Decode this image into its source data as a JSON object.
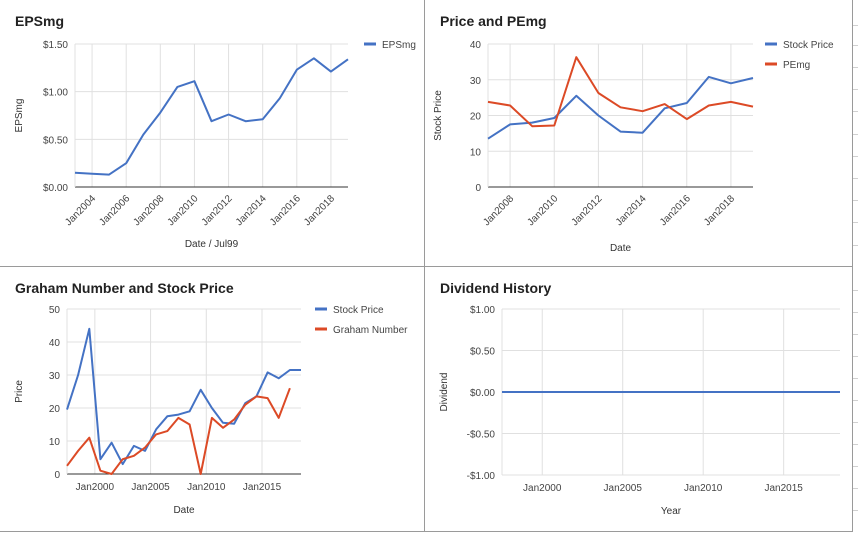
{
  "charts": [
    {
      "id": "c1",
      "type": "line",
      "title": "EPSmg",
      "xlabel": "Date / Jul99",
      "ylabel": "EPSmg",
      "ylim": [
        0,
        1.5
      ],
      "yticks": [
        0,
        0.5,
        1.0,
        1.5
      ],
      "ytick_labels": [
        "$0.00",
        "$0.50",
        "$1.00",
        "$1.50"
      ],
      "xlim": [
        2003,
        2019
      ],
      "xticks": [
        2004,
        2006,
        2008,
        2010,
        2012,
        2014,
        2016,
        2018
      ],
      "xtick_labels": [
        "Jan2004",
        "Jan2006",
        "Jan2008",
        "Jan2010",
        "Jan2012",
        "Jan2014",
        "Jan2016",
        "Jan2018"
      ],
      "rotate_xticks": true,
      "legend_position": "right",
      "series": [
        {
          "name": "EPSmg",
          "color": "#4472C4",
          "x": [
            2003,
            2004,
            2005,
            2006,
            2007,
            2008,
            2009,
            2010,
            2011,
            2012,
            2013,
            2014,
            2015,
            2016,
            2017,
            2018,
            2019
          ],
          "y": [
            0.15,
            0.14,
            0.13,
            0.25,
            0.55,
            0.78,
            1.05,
            1.11,
            0.69,
            0.76,
            0.69,
            0.71,
            0.93,
            1.23,
            1.35,
            1.21,
            1.34
          ]
        }
      ]
    },
    {
      "id": "c2",
      "type": "line",
      "title": "Price and PEmg",
      "xlabel": "Date",
      "ylabel": "Stock Price",
      "ylim": [
        0,
        40
      ],
      "yticks": [
        0,
        10,
        20,
        30,
        40
      ],
      "ytick_labels": [
        "0",
        "10",
        "20",
        "30",
        "40"
      ],
      "xlim": [
        2007,
        2019
      ],
      "xticks": [
        2008,
        2010,
        2012,
        2014,
        2016,
        2018
      ],
      "xtick_labels": [
        "Jan2008",
        "Jan2010",
        "Jan2012",
        "Jan2014",
        "Jan2016",
        "Jan2018"
      ],
      "rotate_xticks": true,
      "legend_position": "right",
      "series": [
        {
          "name": "Stock Price",
          "color": "#4472C4",
          "x": [
            2007,
            2008,
            2009,
            2010,
            2011,
            2012,
            2013,
            2014,
            2015,
            2016,
            2017,
            2018,
            2019
          ],
          "y": [
            13.5,
            17.5,
            18,
            19.3,
            25.5,
            20,
            15.5,
            15.2,
            22,
            23.5,
            30.8,
            29,
            30.5
          ]
        },
        {
          "name": "PEmg",
          "color": "#DC4A26",
          "x": [
            2007,
            2008,
            2009,
            2010,
            2011,
            2012,
            2013,
            2014,
            2015,
            2016,
            2017,
            2018,
            2019
          ],
          "y": [
            23.8,
            22.8,
            17,
            17.2,
            36.3,
            26.3,
            22.3,
            21.2,
            23.2,
            19,
            22.8,
            23.8,
            22.5
          ]
        }
      ]
    },
    {
      "id": "c3",
      "type": "line",
      "title": "Graham Number and Stock Price",
      "xlabel": "Date",
      "ylabel": "Price",
      "ylim": [
        0,
        50
      ],
      "yticks": [
        0,
        10,
        20,
        30,
        40,
        50
      ],
      "ytick_labels": [
        "0",
        "10",
        "20",
        "30",
        "40",
        "50"
      ],
      "xlim": [
        1997.5,
        2018.5
      ],
      "xticks": [
        2000,
        2005,
        2010,
        2015
      ],
      "xtick_labels": [
        "Jan2000",
        "Jan2005",
        "Jan2010",
        "Jan2015"
      ],
      "rotate_xticks": false,
      "legend_position": "right",
      "series": [
        {
          "name": "Stock Price",
          "color": "#4472C4",
          "x": [
            1997.5,
            1998.5,
            1999.5,
            2000.5,
            2001.5,
            2002.5,
            2003.5,
            2004.5,
            2005.5,
            2006.5,
            2007.5,
            2008.5,
            2009.5,
            2010.5,
            2011.5,
            2012.5,
            2013.5,
            2014.5,
            2015.5,
            2016.5,
            2017.5,
            2018.5
          ],
          "y": [
            19.5,
            30,
            44,
            4.5,
            9.5,
            3,
            8.5,
            7,
            13.5,
            17.5,
            18,
            19,
            25.5,
            20,
            15.5,
            15.2,
            21.5,
            23.5,
            30.8,
            29,
            31.5,
            31.5
          ]
        },
        {
          "name": "Graham Number",
          "color": "#DC4A26",
          "x": [
            1997.5,
            1998.5,
            1999.5,
            2000.5,
            2001.5,
            2002.5,
            2003.5,
            2004.5,
            2005.5,
            2006.5,
            2007.5,
            2008.5,
            2009.5,
            2010.5,
            2011.5,
            2012.5,
            2013.5,
            2014.5,
            2015.5,
            2016.5,
            2017.5
          ],
          "y": [
            2.5,
            7,
            11,
            1,
            0,
            4.5,
            5.5,
            8,
            12,
            13,
            17,
            15,
            0,
            17,
            14,
            16.5,
            21,
            23.5,
            23,
            17,
            26
          ]
        }
      ]
    },
    {
      "id": "c4",
      "type": "line",
      "title": "Dividend History",
      "xlabel": "Year",
      "ylabel": "Dividend",
      "ylim": [
        -1,
        1
      ],
      "yticks": [
        -1,
        -0.5,
        0,
        0.5,
        1
      ],
      "ytick_labels": [
        "-$1.00",
        "-$0.50",
        "$0.00",
        "$0.50",
        "$1.00"
      ],
      "xlim": [
        1997.5,
        2018.5
      ],
      "xticks": [
        2000,
        2005,
        2010,
        2015
      ],
      "xtick_labels": [
        "Jan2000",
        "Jan2005",
        "Jan2010",
        "Jan2015"
      ],
      "rotate_xticks": false,
      "legend_position": "none",
      "series": [
        {
          "name": "",
          "color": "#4472C4",
          "x": [
            1997.5,
            2018.5
          ],
          "y": [
            0,
            0
          ]
        }
      ]
    }
  ]
}
